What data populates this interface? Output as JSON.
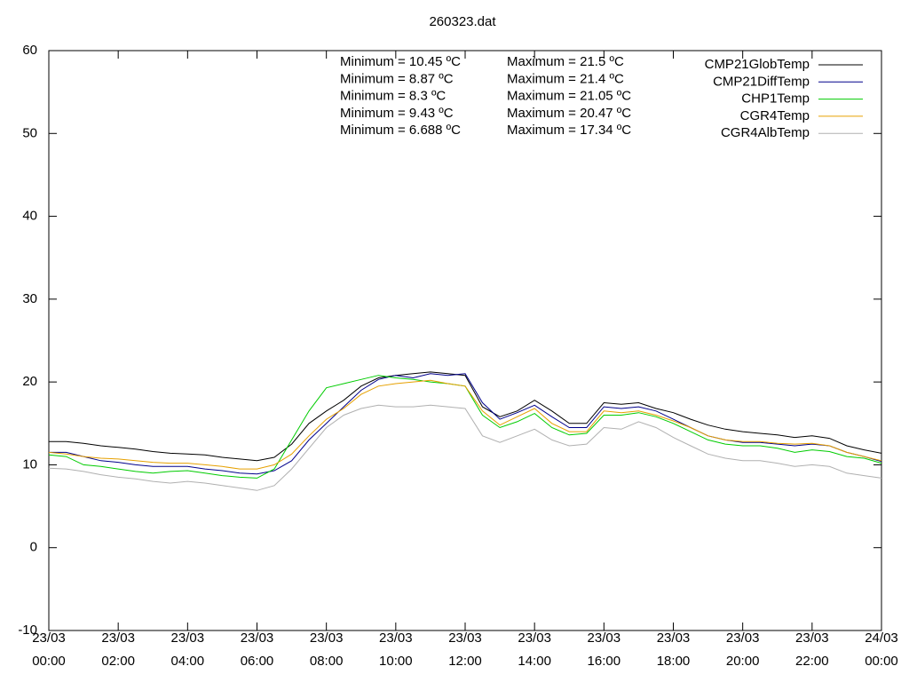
{
  "chart_data": {
    "type": "line",
    "title": "260323.dat",
    "x": [
      "23/03 00:00",
      "23/03 00:30",
      "23/03 01:00",
      "23/03 01:30",
      "23/03 02:00",
      "23/03 02:30",
      "23/03 03:00",
      "23/03 03:30",
      "23/03 04:00",
      "23/03 04:30",
      "23/03 05:00",
      "23/03 05:30",
      "23/03 06:00",
      "23/03 06:30",
      "23/03 07:00",
      "23/03 07:30",
      "23/03 08:00",
      "23/03 08:30",
      "23/03 09:00",
      "23/03 09:30",
      "23/03 10:00",
      "23/03 10:30",
      "23/03 11:00",
      "23/03 11:30",
      "23/03 12:00",
      "23/03 12:30",
      "23/03 13:00",
      "23/03 13:30",
      "23/03 14:00",
      "23/03 14:30",
      "23/03 15:00",
      "23/03 15:30",
      "23/03 16:00",
      "23/03 16:30",
      "23/03 17:00",
      "23/03 17:30",
      "23/03 18:00",
      "23/03 18:30",
      "23/03 19:00",
      "23/03 19:30",
      "23/03 20:00",
      "23/03 20:30",
      "23/03 21:00",
      "23/03 21:30",
      "23/03 22:00",
      "23/03 22:30",
      "23/03 23:00",
      "23/03 23:30",
      "24/03 00:00"
    ],
    "xlim": [
      "23/03 00:00",
      "24/03 00:00"
    ],
    "xticks": [
      {
        "value": "23/03 00:00",
        "label": "23/03\n00:00"
      },
      {
        "value": "23/03 02:00",
        "label": "23/03\n02:00"
      },
      {
        "value": "23/03 04:00",
        "label": "23/03\n04:00"
      },
      {
        "value": "23/03 06:00",
        "label": "23/03\n06:00"
      },
      {
        "value": "23/03 08:00",
        "label": "23/03\n08:00"
      },
      {
        "value": "23/03 10:00",
        "label": "23/03\n10:00"
      },
      {
        "value": "23/03 12:00",
        "label": "23/03\n12:00"
      },
      {
        "value": "23/03 14:00",
        "label": "23/03\n14:00"
      },
      {
        "value": "23/03 16:00",
        "label": "23/03\n16:00"
      },
      {
        "value": "23/03 18:00",
        "label": "23/03\n18:00"
      },
      {
        "value": "23/03 20:00",
        "label": "23/03\n20:00"
      },
      {
        "value": "23/03 22:00",
        "label": "23/03\n22:00"
      },
      {
        "value": "24/03 00:00",
        "label": "24/03\n00:00"
      }
    ],
    "ylim": [
      -10,
      60
    ],
    "yticks": [
      -10,
      0,
      10,
      20,
      30,
      40,
      50,
      60
    ],
    "legend": "top-right",
    "annotations": {
      "minimum": [
        "Minimum = 10.45 ºC",
        "Minimum = 8.87 ºC",
        "Minimum = 8.3 ºC",
        "Minimum = 9.43 ºC",
        "Minimum = 6.688 ºC"
      ],
      "maximum": [
        "Maximum = 21.5 ºC",
        "Maximum = 21.4 ºC",
        "Maximum = 21.05 ºC",
        "Maximum = 20.47 ºC",
        "Maximum = 17.34 ºC"
      ]
    },
    "series": [
      {
        "name": "CMP21GlobTemp",
        "color": "#000000",
        "values": [
          12.8,
          12.8,
          12.6,
          12.3,
          12.1,
          11.9,
          11.6,
          11.4,
          11.3,
          11.2,
          10.9,
          10.7,
          10.5,
          10.9,
          12.5,
          15.0,
          16.5,
          17.8,
          19.5,
          20.5,
          20.8,
          21.0,
          21.2,
          21.0,
          20.8,
          17.0,
          15.8,
          16.5,
          17.8,
          16.5,
          15.0,
          15.0,
          17.5,
          17.3,
          17.5,
          16.8,
          16.3,
          15.5,
          14.8,
          14.3,
          14.0,
          13.8,
          13.6,
          13.3,
          13.5,
          13.2,
          12.3,
          11.8,
          11.4
        ]
      },
      {
        "name": "CMP21DiffTemp",
        "color": "#00008b",
        "values": [
          11.5,
          11.5,
          11.0,
          10.5,
          10.3,
          10.0,
          9.8,
          9.8,
          9.8,
          9.5,
          9.3,
          9.0,
          8.9,
          9.3,
          10.5,
          13.0,
          15.0,
          17.0,
          19.0,
          20.3,
          20.8,
          20.5,
          21.0,
          20.8,
          21.0,
          17.5,
          15.5,
          16.3,
          17.2,
          15.8,
          14.5,
          14.5,
          17.0,
          16.8,
          17.0,
          16.5,
          15.5,
          14.5,
          13.5,
          13.0,
          12.7,
          12.7,
          12.5,
          12.3,
          12.5,
          12.3,
          11.5,
          11.0,
          10.4
        ]
      },
      {
        "name": "CHP1Temp",
        "color": "#00cc00",
        "values": [
          11.2,
          11.0,
          10.0,
          9.8,
          9.5,
          9.2,
          9.0,
          9.2,
          9.3,
          9.0,
          8.7,
          8.5,
          8.4,
          9.5,
          13.0,
          16.5,
          19.3,
          19.8,
          20.3,
          20.8,
          20.5,
          20.3,
          20.0,
          19.8,
          19.5,
          16.0,
          14.5,
          15.2,
          16.2,
          14.5,
          13.6,
          13.8,
          16.0,
          16.0,
          16.3,
          15.8,
          15.0,
          14.0,
          13.0,
          12.5,
          12.3,
          12.3,
          12.0,
          11.5,
          11.8,
          11.6,
          11.0,
          10.8,
          10.2
        ]
      },
      {
        "name": "CGR4Temp",
        "color": "#e6a000",
        "values": [
          11.5,
          11.3,
          11.0,
          10.8,
          10.7,
          10.5,
          10.3,
          10.2,
          10.2,
          10.0,
          9.8,
          9.5,
          9.5,
          10.0,
          11.3,
          13.5,
          15.5,
          16.8,
          18.5,
          19.5,
          19.8,
          20.0,
          20.2,
          19.8,
          19.5,
          16.5,
          14.8,
          15.8,
          16.8,
          15.0,
          14.0,
          14.0,
          16.5,
          16.3,
          16.5,
          16.0,
          15.3,
          14.5,
          13.5,
          13.0,
          12.8,
          12.8,
          12.6,
          12.5,
          12.6,
          12.3,
          11.5,
          11.0,
          10.5
        ]
      },
      {
        "name": "CGR4AlbTemp",
        "color": "#b0b0b0",
        "values": [
          9.6,
          9.5,
          9.2,
          8.8,
          8.5,
          8.3,
          8.0,
          7.8,
          8.0,
          7.8,
          7.5,
          7.2,
          6.9,
          7.5,
          9.5,
          12.0,
          14.5,
          16.0,
          16.8,
          17.2,
          17.0,
          17.0,
          17.2,
          17.0,
          16.8,
          13.5,
          12.7,
          13.5,
          14.3,
          13.0,
          12.3,
          12.5,
          14.5,
          14.3,
          15.2,
          14.5,
          13.3,
          12.3,
          11.3,
          10.8,
          10.5,
          10.5,
          10.2,
          9.8,
          10.0,
          9.8,
          9.0,
          8.7,
          8.4
        ]
      }
    ]
  }
}
